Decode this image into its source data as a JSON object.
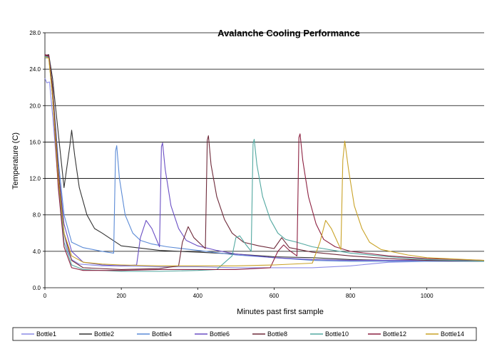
{
  "chart_data": {
    "type": "line",
    "title": "Avalanche Cooling Performance",
    "xlabel": "Minutes past first sample",
    "ylabel": "Temperature (C)",
    "xlim": [
      0,
      1150
    ],
    "ylim": [
      0,
      28
    ],
    "x_ticks": [
      "0",
      "200",
      "400",
      "600",
      "800",
      "1000"
    ],
    "y_ticks": [
      "0.0",
      "4.0",
      "8.0",
      "12.0",
      "16.0",
      "20.0",
      "24.0",
      "28.0"
    ],
    "grid": "horizontal",
    "legend_position": "bottom",
    "series": [
      {
        "name": "Bottle1",
        "color": "#8c8ce6",
        "points": [
          [
            0,
            23.0
          ],
          [
            5,
            22.5
          ],
          [
            12,
            22.6
          ],
          [
            20,
            19
          ],
          [
            30,
            14
          ],
          [
            40,
            9
          ],
          [
            50,
            6
          ],
          [
            60,
            4
          ],
          [
            70,
            3.1
          ],
          [
            90,
            2.6
          ],
          [
            150,
            2.4
          ],
          [
            200,
            2.4
          ],
          [
            300,
            2.3
          ],
          [
            400,
            2.3
          ],
          [
            500,
            2.2
          ],
          [
            600,
            2.2
          ],
          [
            700,
            2.2
          ],
          [
            800,
            2.4
          ],
          [
            900,
            2.8
          ],
          [
            1000,
            2.9
          ],
          [
            1150,
            3.0
          ]
        ]
      },
      {
        "name": "Bottle2",
        "color": "#333333",
        "points": [
          [
            0,
            25.5
          ],
          [
            10,
            25.6
          ],
          [
            20,
            23
          ],
          [
            35,
            17
          ],
          [
            50,
            11
          ],
          [
            65,
            15.5
          ],
          [
            70,
            17.3
          ],
          [
            78,
            14.5
          ],
          [
            90,
            11
          ],
          [
            110,
            8
          ],
          [
            130,
            6.5
          ],
          [
            150,
            6
          ],
          [
            200,
            4.6
          ],
          [
            300,
            4.1
          ],
          [
            400,
            3.9
          ],
          [
            500,
            3.7
          ],
          [
            600,
            3.4
          ],
          [
            700,
            3.3
          ],
          [
            800,
            3.1
          ],
          [
            900,
            3.0
          ],
          [
            1000,
            3.0
          ],
          [
            1150,
            3.0
          ]
        ]
      },
      {
        "name": "Bottle4",
        "color": "#5a8ad6",
        "points": [
          [
            0,
            25.2
          ],
          [
            10,
            25.3
          ],
          [
            20,
            22
          ],
          [
            35,
            14
          ],
          [
            50,
            8
          ],
          [
            70,
            5
          ],
          [
            100,
            4.4
          ],
          [
            150,
            4.0
          ],
          [
            180,
            3.8
          ],
          [
            185,
            15.0
          ],
          [
            188,
            15.6
          ],
          [
            195,
            12
          ],
          [
            210,
            8
          ],
          [
            230,
            6
          ],
          [
            250,
            5.2
          ],
          [
            280,
            4.8
          ],
          [
            320,
            4.5
          ],
          [
            400,
            4.1
          ],
          [
            500,
            3.6
          ],
          [
            600,
            3.3
          ],
          [
            700,
            3.0
          ],
          [
            800,
            2.9
          ],
          [
            900,
            2.9
          ],
          [
            1000,
            2.9
          ],
          [
            1150,
            2.9
          ]
        ]
      },
      {
        "name": "Bottle6",
        "color": "#6a4fc4",
        "points": [
          [
            0,
            25.5
          ],
          [
            10,
            25.5
          ],
          [
            20,
            22
          ],
          [
            35,
            13
          ],
          [
            50,
            7
          ],
          [
            70,
            4
          ],
          [
            100,
            2.8
          ],
          [
            150,
            2.5
          ],
          [
            200,
            2.4
          ],
          [
            240,
            2.5
          ],
          [
            250,
            5.5
          ],
          [
            265,
            7.4
          ],
          [
            280,
            6.5
          ],
          [
            300,
            4.5
          ],
          [
            305,
            15.5
          ],
          [
            308,
            15.9
          ],
          [
            315,
            13
          ],
          [
            330,
            9
          ],
          [
            350,
            6.5
          ],
          [
            370,
            5.2
          ],
          [
            400,
            4.6
          ],
          [
            450,
            4.1
          ],
          [
            500,
            3.7
          ],
          [
            600,
            3.3
          ],
          [
            700,
            3.1
          ],
          [
            800,
            3.0
          ],
          [
            900,
            3.0
          ],
          [
            1000,
            3.0
          ],
          [
            1150,
            3.0
          ]
        ]
      },
      {
        "name": "Bottle8",
        "color": "#6e2a3a",
        "points": [
          [
            0,
            25.5
          ],
          [
            10,
            25.4
          ],
          [
            20,
            22
          ],
          [
            35,
            13
          ],
          [
            50,
            6
          ],
          [
            70,
            3
          ],
          [
            100,
            2.2
          ],
          [
            200,
            2.0
          ],
          [
            300,
            2.1
          ],
          [
            350,
            2.4
          ],
          [
            360,
            5
          ],
          [
            375,
            6.7
          ],
          [
            390,
            5.5
          ],
          [
            420,
            4.3
          ],
          [
            425,
            16.2
          ],
          [
            428,
            16.7
          ],
          [
            435,
            13.5
          ],
          [
            450,
            10
          ],
          [
            470,
            7.5
          ],
          [
            490,
            6
          ],
          [
            520,
            5
          ],
          [
            560,
            4.6
          ],
          [
            600,
            4.3
          ],
          [
            620,
            5.5
          ],
          [
            640,
            4.4
          ],
          [
            700,
            3.9
          ],
          [
            800,
            3.5
          ],
          [
            900,
            3.2
          ],
          [
            1000,
            3.0
          ],
          [
            1150,
            2.9
          ]
        ]
      },
      {
        "name": "Bottle10",
        "color": "#52a8a0",
        "points": [
          [
            0,
            25.4
          ],
          [
            10,
            25.3
          ],
          [
            20,
            21
          ],
          [
            35,
            12
          ],
          [
            50,
            5
          ],
          [
            70,
            2.5
          ],
          [
            100,
            2.0
          ],
          [
            200,
            1.8
          ],
          [
            300,
            1.8
          ],
          [
            400,
            1.9
          ],
          [
            450,
            2.0
          ],
          [
            490,
            3.5
          ],
          [
            500,
            5.5
          ],
          [
            510,
            5.7
          ],
          [
            525,
            4.8
          ],
          [
            540,
            4.0
          ],
          [
            545,
            15.8
          ],
          [
            548,
            16.3
          ],
          [
            555,
            13.5
          ],
          [
            570,
            10
          ],
          [
            590,
            7.5
          ],
          [
            610,
            6
          ],
          [
            630,
            5.3
          ],
          [
            660,
            5.0
          ],
          [
            700,
            4.5
          ],
          [
            800,
            3.8
          ],
          [
            900,
            3.4
          ],
          [
            1000,
            3.1
          ],
          [
            1150,
            2.9
          ]
        ]
      },
      {
        "name": "Bottle12",
        "color": "#8c2040",
        "points": [
          [
            0,
            25.6
          ],
          [
            10,
            25.5
          ],
          [
            20,
            21
          ],
          [
            35,
            11
          ],
          [
            50,
            4.5
          ],
          [
            70,
            2.2
          ],
          [
            100,
            1.9
          ],
          [
            200,
            1.9
          ],
          [
            300,
            2.0
          ],
          [
            400,
            2.0
          ],
          [
            500,
            2.0
          ],
          [
            590,
            2.2
          ],
          [
            610,
            4.0
          ],
          [
            625,
            4.7
          ],
          [
            640,
            4.1
          ],
          [
            660,
            3.5
          ],
          [
            665,
            16.5
          ],
          [
            668,
            16.9
          ],
          [
            675,
            14
          ],
          [
            690,
            10
          ],
          [
            710,
            7
          ],
          [
            730,
            5.3
          ],
          [
            760,
            4.5
          ],
          [
            800,
            4.0
          ],
          [
            900,
            3.5
          ],
          [
            1000,
            3.2
          ],
          [
            1150,
            3.0
          ]
        ]
      },
      {
        "name": "Bottle14",
        "color": "#c9a227",
        "points": [
          [
            0,
            25.3
          ],
          [
            10,
            25.2
          ],
          [
            20,
            21
          ],
          [
            35,
            12
          ],
          [
            50,
            6
          ],
          [
            70,
            3.5
          ],
          [
            100,
            2.8
          ],
          [
            150,
            2.6
          ],
          [
            200,
            2.5
          ],
          [
            300,
            2.4
          ],
          [
            400,
            2.4
          ],
          [
            500,
            2.4
          ],
          [
            600,
            2.5
          ],
          [
            700,
            2.7
          ],
          [
            720,
            5
          ],
          [
            735,
            7.4
          ],
          [
            750,
            6.5
          ],
          [
            775,
            4.2
          ],
          [
            780,
            14
          ],
          [
            785,
            16.1
          ],
          [
            795,
            13
          ],
          [
            810,
            9
          ],
          [
            830,
            6.5
          ],
          [
            850,
            5
          ],
          [
            880,
            4.2
          ],
          [
            950,
            3.6
          ],
          [
            1000,
            3.3
          ],
          [
            1150,
            3.0
          ]
        ]
      }
    ]
  }
}
